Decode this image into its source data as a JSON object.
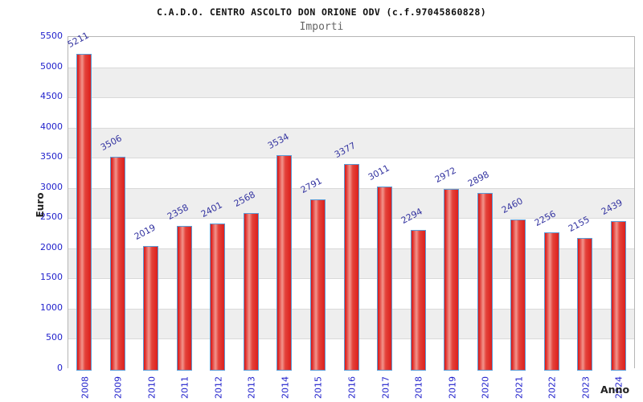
{
  "chart_data": {
    "type": "bar",
    "title": "C.A.D.O. CENTRO ASCOLTO DON ORIONE ODV (c.f.97045860828)",
    "subtitle": "Importi",
    "ylabel": "Euro",
    "xlabel": "Anno",
    "categories": [
      "2008",
      "2009",
      "2010",
      "2011",
      "2012",
      "2013",
      "2014",
      "2015",
      "2016",
      "2017",
      "2018",
      "2019",
      "2020",
      "2021",
      "2022",
      "2023",
      "2024"
    ],
    "values": [
      5211,
      3506,
      2019,
      2358,
      2401,
      2568,
      3534,
      2791,
      3377,
      3011,
      2294,
      2972,
      2898,
      2460,
      2256,
      2155,
      2439
    ],
    "ylim": [
      0,
      5500
    ],
    "ytick_step": 500,
    "grid": true,
    "legend": "none",
    "band_fill": "alternating horizontal 500-unit bands",
    "colors": {
      "bar_dark": "#dc201d",
      "bar_mid": "#e4423a",
      "bar_light": "#f2958c",
      "bar_border": "#5b9bd5",
      "value_label": "#3333a0",
      "tick_label": "#2222cc",
      "band_gray": "#eeeeee",
      "band_white": "#ffffff",
      "grid_line": "#d9d9d9",
      "axis_frame": "#b5b5b5",
      "title": "#111111",
      "subtitle": "#666666",
      "axis_title": "#222222"
    }
  }
}
